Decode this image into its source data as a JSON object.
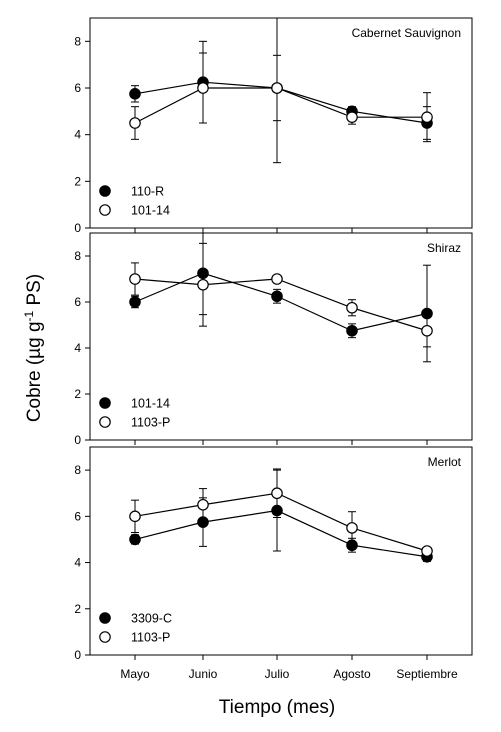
{
  "chart_data": {
    "type": "line",
    "xlabel": "Tiempo (mes)",
    "ylabel_main": "Cobre (µg g",
    "ylabel_sup": "-1",
    "ylabel_tail": " PS)",
    "categories": [
      "Mayo",
      "Junio",
      "Julio",
      "Agosto",
      "Septiembre"
    ],
    "ylim": [
      0,
      9
    ],
    "yticks": [
      "0",
      "2",
      "4",
      "6",
      "8"
    ],
    "colors": {
      "filled": "#000000",
      "open": "#ffffff",
      "line": "#000000"
    },
    "panels": [
      {
        "title": "Cabernet Sauvignon",
        "legend_position": "bottom-left",
        "series": [
          {
            "name": "110-R",
            "marker": "filled",
            "values": [
              5.75,
              6.25,
              6.0,
              5.0,
              4.5
            ],
            "errors": [
              0.35,
              1.75,
              3.2,
              0.2,
              0.7
            ]
          },
          {
            "name": "101-14",
            "marker": "open",
            "values": [
              4.5,
              6.0,
              6.0,
              4.75,
              4.75
            ],
            "errors": [
              0.7,
              1.5,
              1.4,
              0.3,
              1.05
            ]
          }
        ]
      },
      {
        "title": "Shiraz",
        "legend_position": "bottom-left",
        "series": [
          {
            "name": "101-14",
            "marker": "filled",
            "values": [
              6.0,
              7.25,
              6.25,
              4.75,
              5.5
            ],
            "errors": [
              0.25,
              1.8,
              0.3,
              0.3,
              2.1
            ]
          },
          {
            "name": "1103-P",
            "marker": "open",
            "values": [
              7.0,
              6.75,
              7.0,
              5.75,
              4.75
            ],
            "errors": [
              0.7,
              1.8,
              0.1,
              0.35,
              0.7
            ]
          }
        ]
      },
      {
        "title": "Merlot",
        "legend_position": "bottom-left",
        "series": [
          {
            "name": "3309-C",
            "marker": "filled",
            "values": [
              5.0,
              5.75,
              6.25,
              4.75,
              4.25
            ],
            "errors": [
              0.2,
              1.05,
              1.75,
              0.3,
              0.2
            ]
          },
          {
            "name": "1103-P",
            "marker": "open",
            "values": [
              6.0,
              6.5,
              7.0,
              5.5,
              4.5
            ],
            "errors": [
              0.7,
              0.7,
              1.05,
              0.7,
              0.1
            ]
          }
        ]
      }
    ]
  }
}
